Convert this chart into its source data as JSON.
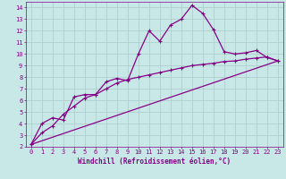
{
  "background_color": "#c8e8e8",
  "grid_color": "#b0d0d0",
  "line_color": "#880088",
  "xlabel": "Windchill (Refroidissement éolien,°C)",
  "ylabel_ticks": [
    2,
    3,
    4,
    5,
    6,
    7,
    8,
    9,
    10,
    11,
    12,
    13,
    14
  ],
  "xlim": [
    -0.5,
    23.5
  ],
  "ylim": [
    2,
    14.5
  ],
  "xticks": [
    0,
    1,
    2,
    3,
    4,
    5,
    6,
    7,
    8,
    9,
    10,
    11,
    12,
    13,
    14,
    15,
    16,
    17,
    18,
    19,
    20,
    21,
    22,
    23
  ],
  "series1_x": [
    0,
    1,
    2,
    3,
    4,
    5,
    6,
    7,
    8,
    9,
    10,
    11,
    12,
    13,
    14,
    15,
    16,
    17,
    18,
    19,
    20,
    21,
    22,
    23
  ],
  "series1_y": [
    2.2,
    4.0,
    4.5,
    4.3,
    6.3,
    6.5,
    6.5,
    7.6,
    7.9,
    7.7,
    10.0,
    12.0,
    11.1,
    12.5,
    13.0,
    14.2,
    13.5,
    12.1,
    10.2,
    10.0,
    10.1,
    10.3,
    9.7,
    9.4
  ],
  "series2_x": [
    0,
    1,
    2,
    3,
    4,
    5,
    6,
    7,
    8,
    9,
    10,
    11,
    12,
    13,
    14,
    15,
    16,
    17,
    18,
    19,
    20,
    21,
    22,
    23
  ],
  "series2_y": [
    2.2,
    3.2,
    3.8,
    4.8,
    5.5,
    6.2,
    6.5,
    7.0,
    7.5,
    7.8,
    8.0,
    8.2,
    8.4,
    8.6,
    8.8,
    9.0,
    9.1,
    9.2,
    9.35,
    9.4,
    9.55,
    9.65,
    9.75,
    9.4
  ],
  "series3_x": [
    0,
    23
  ],
  "series3_y": [
    2.2,
    9.4
  ],
  "font_family": "monospace",
  "tick_fontsize": 5,
  "xlabel_fontsize": 5.5
}
